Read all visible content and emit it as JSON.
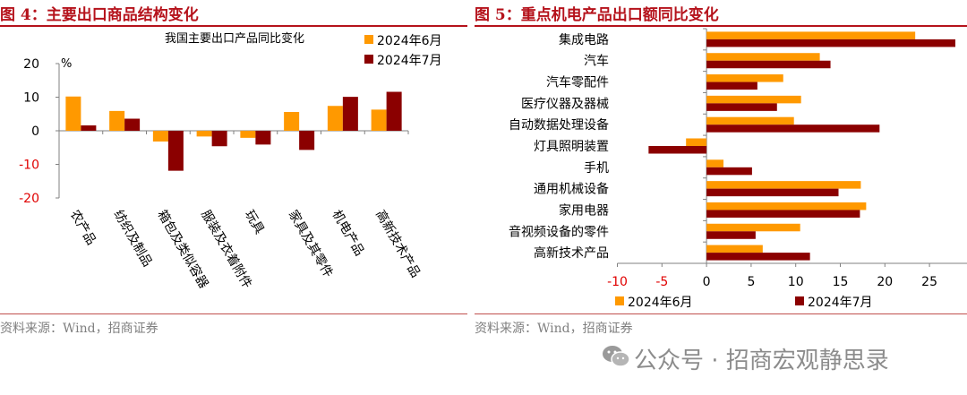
{
  "left": {
    "title": "图 4：主要出口商品结构变化",
    "source": "资料来源：Wind，招商证券",
    "chart_data": {
      "type": "bar",
      "title": "我国主要出口产品同比变化",
      "ylabel": "%",
      "ylim": [
        -20,
        20
      ],
      "yticks": [
        -20,
        -10,
        0,
        10,
        20
      ],
      "legend_position": "top-right",
      "categories": [
        "农产品",
        "纺织及制品",
        "箱包及类似容器",
        "服装及衣着附件",
        "玩具",
        "家具及其零件",
        "机电产品",
        "高新技术产品"
      ],
      "series": [
        {
          "name": "2024年6月",
          "color": "#ff9900",
          "values": [
            10.2,
            5.9,
            -3.2,
            -1.7,
            -2.1,
            5.6,
            7.4,
            6.3
          ]
        },
        {
          "name": "2024年7月",
          "color": "#8b0000",
          "values": [
            1.6,
            3.6,
            -11.9,
            -4.6,
            -4.1,
            -5.7,
            10.1,
            11.6
          ]
        }
      ]
    }
  },
  "right": {
    "title": "图 5：重点机电产品出口额同比变化",
    "source": "资料来源：Wind，招商证券",
    "chart_data": {
      "type": "bar",
      "orientation": "horizontal",
      "xlim": [
        -10,
        30
      ],
      "xticks": [
        -10,
        -5,
        0,
        5,
        10,
        15,
        20,
        25
      ],
      "legend_position": "bottom",
      "categories": [
        "集成电路",
        "汽车",
        "汽车零配件",
        "医疗仪器及器械",
        "自动数据处理设备",
        "灯具照明装置",
        "手机",
        "通用机械设备",
        "家用电器",
        "音视频设备的零件",
        "高新技术产品"
      ],
      "series": [
        {
          "name": "2024年6月",
          "color": "#ff9900",
          "values": [
            23.4,
            12.7,
            8.6,
            10.6,
            9.8,
            -2.3,
            1.9,
            17.3,
            17.9,
            10.5,
            6.3
          ]
        },
        {
          "name": "2024年7月",
          "color": "#8b0000",
          "values": [
            27.9,
            13.9,
            5.7,
            7.9,
            19.4,
            -6.5,
            5.1,
            14.8,
            17.2,
            5.5,
            11.6
          ]
        }
      ]
    }
  },
  "watermark": {
    "text": "公众号 · 招商宏观静思录",
    "icon": "wechat-icon"
  }
}
